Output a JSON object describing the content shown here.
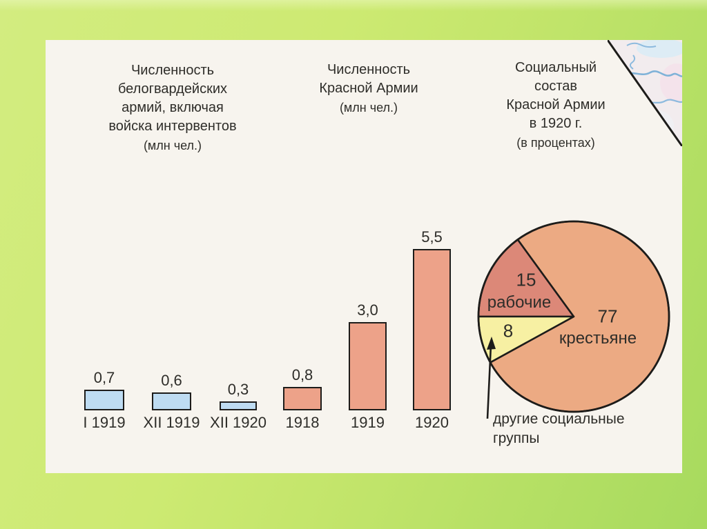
{
  "colors": {
    "background_green_light": "#d3ec80",
    "background_green_dark": "#a7da5e",
    "panel_bg": "#f7f4ee",
    "outline": "#1d1c1a",
    "text": "#2e2d29",
    "map_river_blue": "#84b4d8"
  },
  "chart_data": [
    {
      "type": "bar",
      "title": "Численность белогвардейских армий, включая войска интервентов (млн чел.)",
      "title_lines": [
        "Численность",
        "белогвардейских",
        "армий, включая",
        "войска интервентов"
      ],
      "subtitle": "(млн  чел.)",
      "categories": [
        "I 1919",
        "XII 1919",
        "XII 1920"
      ],
      "values": [
        0.7,
        0.6,
        0.3
      ],
      "value_labels": [
        "0,7",
        "0,6",
        "0,3"
      ],
      "bar_color": "#bedcf2",
      "unit": "млн чел.",
      "grid": false
    },
    {
      "type": "bar",
      "title": "Численность Красной Армии (млн чел.)",
      "title_lines": [
        "Численность",
        "Красной Армии"
      ],
      "subtitle": "(млн  чел.)",
      "categories": [
        "1918",
        "1919",
        "1920"
      ],
      "values": [
        0.8,
        3.0,
        5.5
      ],
      "value_labels": [
        "0,8",
        "3,0",
        "5,5"
      ],
      "bar_color": "#eda289",
      "unit": "млн чел.",
      "grid": false
    },
    {
      "type": "pie",
      "title": "Социальный состав Красной Армии в 1920 г. (в процентах)",
      "title_lines": [
        "Социальный",
        "состав",
        "Красной Армии",
        "в 1920 г."
      ],
      "subtitle": "(в процентах)",
      "start_angle_deg": 180,
      "direction": "clockwise",
      "slices": [
        {
          "label": "рабочие",
          "value": 15,
          "color": "#dc8878"
        },
        {
          "label": "крестьяне",
          "value": 77,
          "color": "#ecaa83"
        },
        {
          "label": "другие социальные группы",
          "value": 8,
          "color": "#f7f0a3"
        }
      ],
      "annotation": "другие социальные группы",
      "annotation_lines": [
        "другие социальные",
        "группы"
      ]
    }
  ]
}
